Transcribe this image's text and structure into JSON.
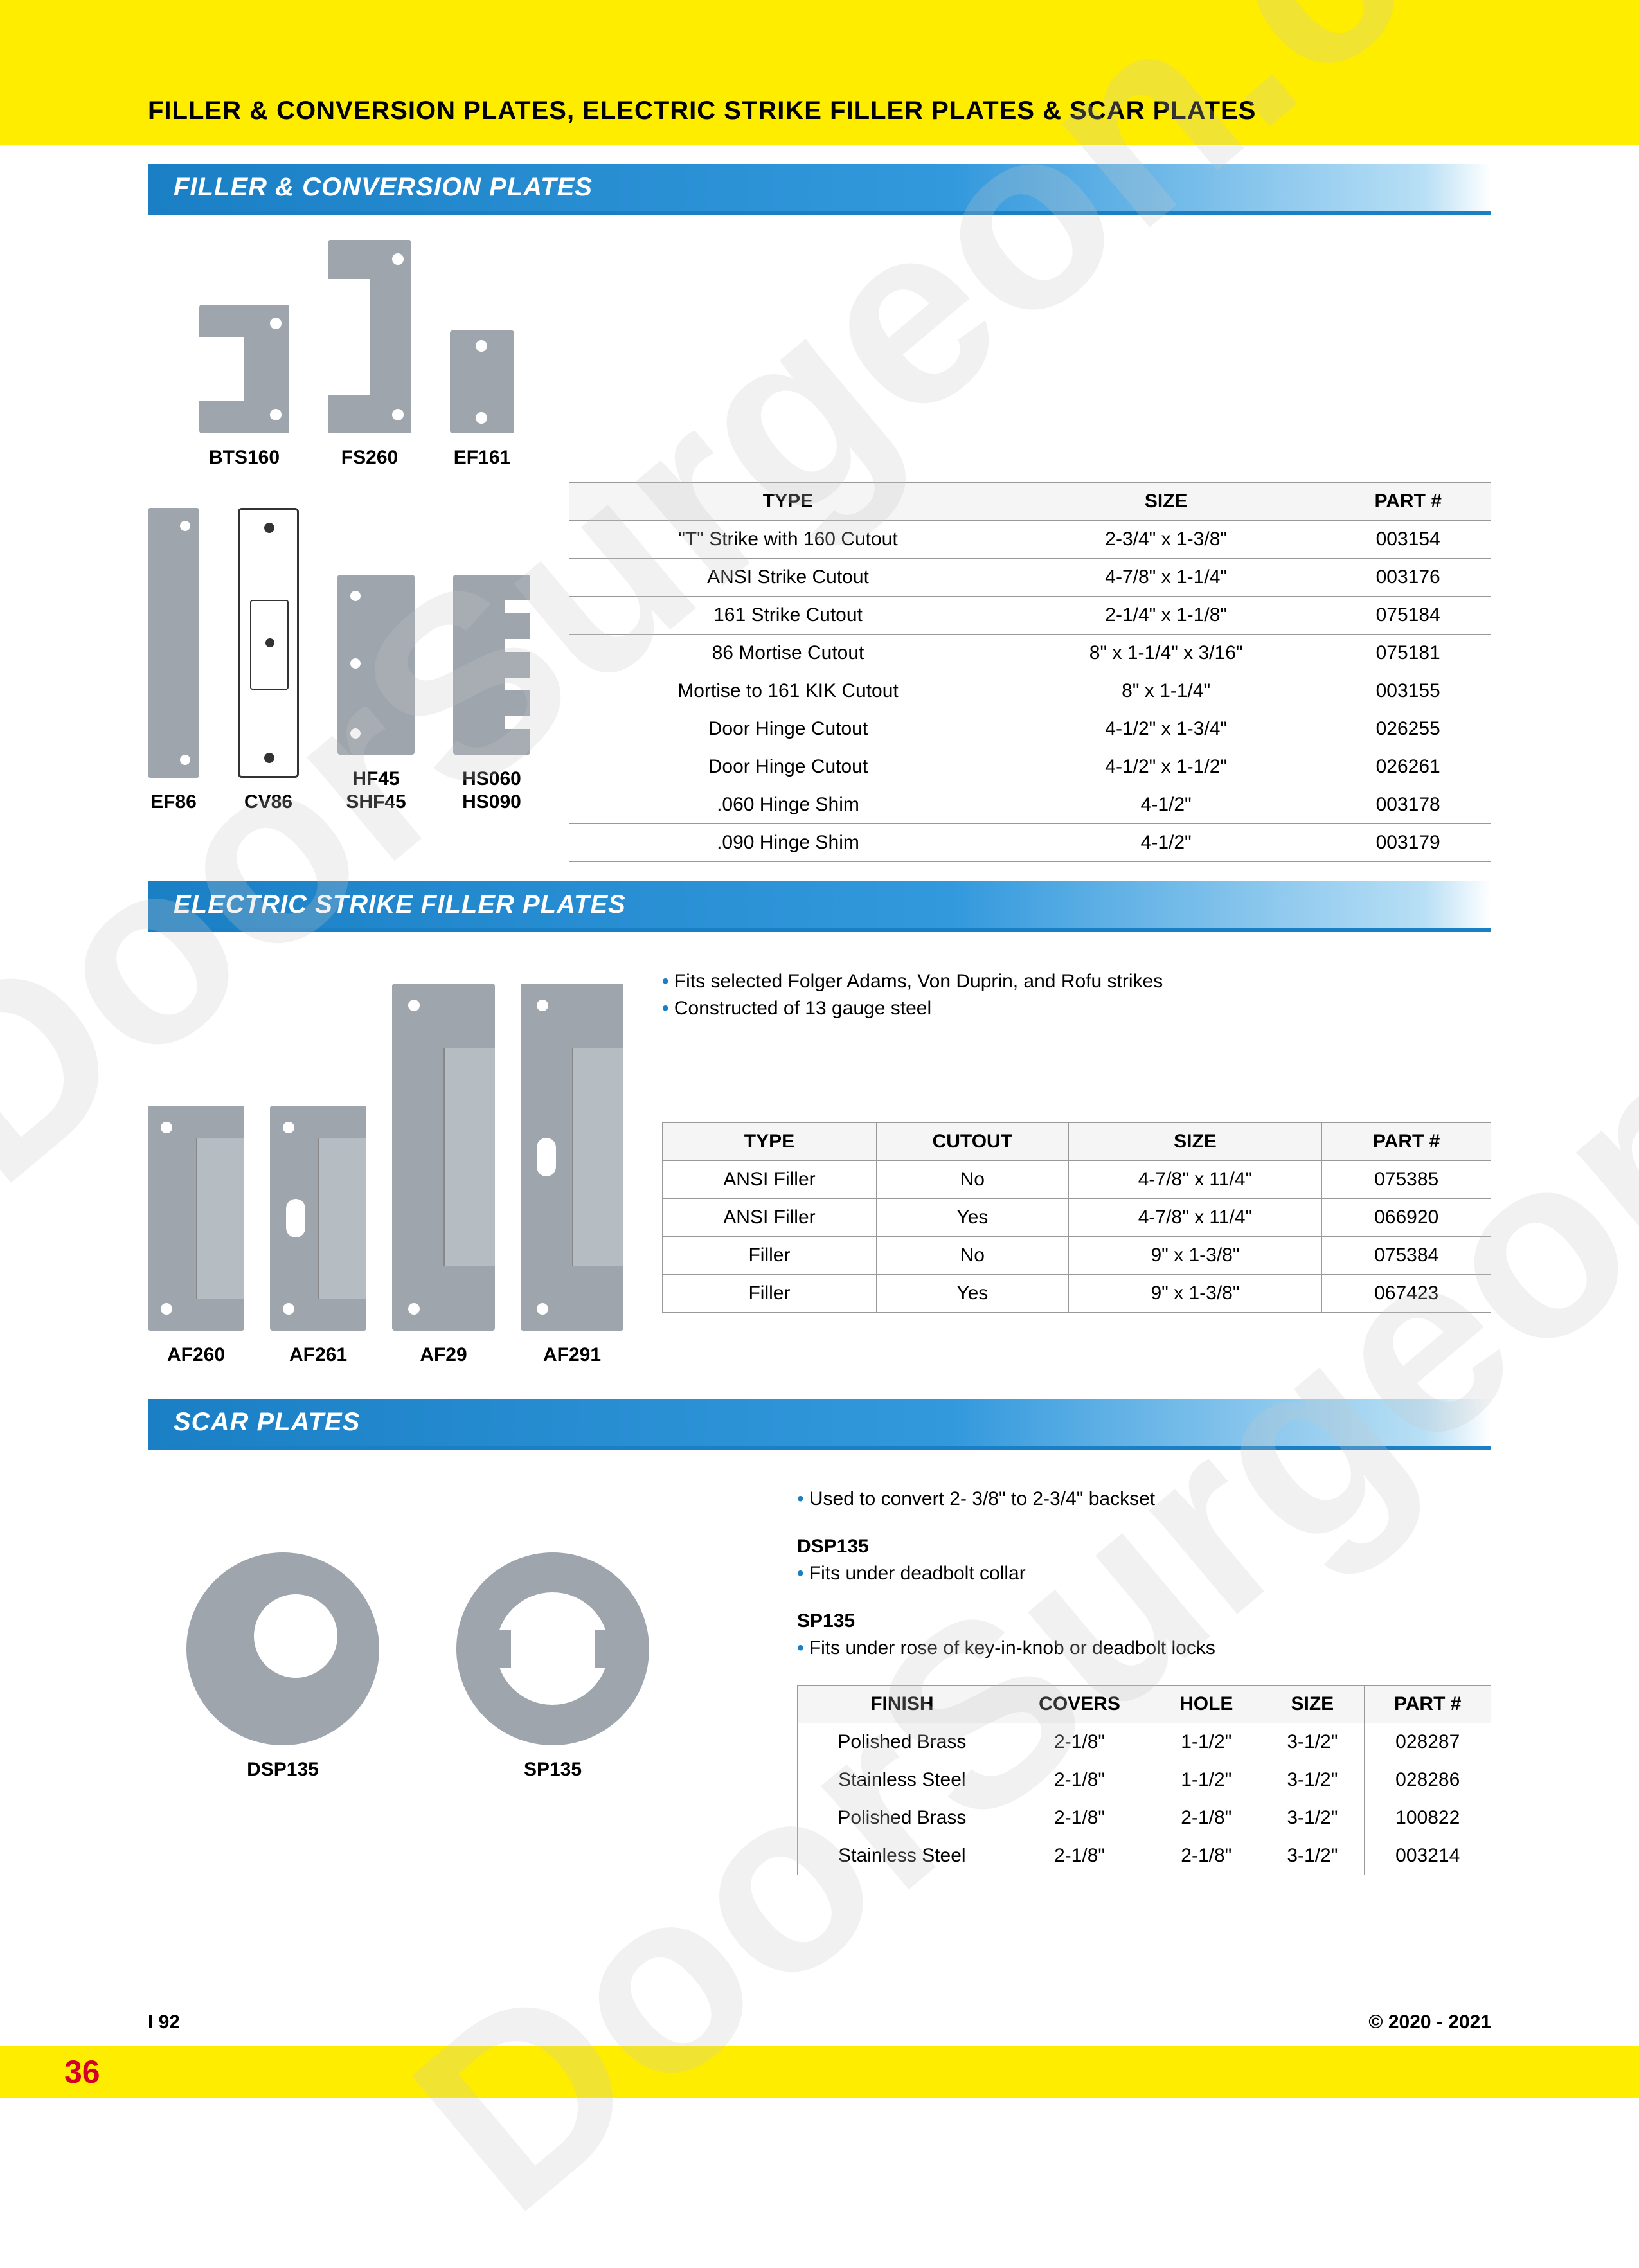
{
  "page_title": "FILLER & CONVERSION PLATES, ELECTRIC STRIKE FILLER PLATES & SCAR PLATES",
  "section1": {
    "header": "FILLER & CONVERSION PLATES",
    "row1_products": [
      "BTS160",
      "FS260",
      "EF161"
    ],
    "row2_products": [
      "EF86",
      "CV86",
      "HF45\nSHF45",
      "HS060\nHS090"
    ],
    "table": {
      "headers": [
        "TYPE",
        "SIZE",
        "PART #"
      ],
      "rows": [
        [
          "\"T\" Strike with 160 Cutout",
          "2-3/4\" x 1-3/8\"",
          "003154"
        ],
        [
          "ANSI Strike Cutout",
          "4-7/8\" x 1-1/4\"",
          "003176"
        ],
        [
          "161 Strike Cutout",
          "2-1/4\" x 1-1/8\"",
          "075184"
        ],
        [
          "86 Mortise Cutout",
          "8\" x 1-1/4\" x 3/16\"",
          "075181"
        ],
        [
          "Mortise to 161 KIK Cutout",
          "8\" x 1-1/4\"",
          "003155"
        ],
        [
          "Door Hinge Cutout",
          "4-1/2\" x 1-3/4\"",
          "026255"
        ],
        [
          "Door Hinge Cutout",
          "4-1/2\" x 1-1/2\"",
          "026261"
        ],
        [
          ".060 Hinge Shim",
          "4-1/2\"",
          "003178"
        ],
        [
          ".090 Hinge Shim",
          "4-1/2\"",
          "003179"
        ]
      ]
    }
  },
  "section2": {
    "header": "ELECTRIC STRIKE FILLER PLATES",
    "products": [
      "AF260",
      "AF261",
      "AF29",
      "AF291"
    ],
    "bullets": [
      "Fits selected Folger Adams, Von Duprin, and Rofu strikes",
      "Constructed of 13 gauge steel"
    ],
    "table": {
      "headers": [
        "TYPE",
        "CUTOUT",
        "SIZE",
        "PART #"
      ],
      "rows": [
        [
          "ANSI Filler",
          "No",
          "4-7/8\" x 11/4\"",
          "075385"
        ],
        [
          "ANSI Filler",
          "Yes",
          "4-7/8\" x 11/4\"",
          "066920"
        ],
        [
          "Filler",
          "No",
          "9\" x 1-3/8\"",
          "075384"
        ],
        [
          "Filler",
          "Yes",
          "9\" x 1-3/8\"",
          "067423"
        ]
      ]
    }
  },
  "section3": {
    "header": "SCAR PLATES",
    "products": [
      "DSP135",
      "SP135"
    ],
    "top_bullet": "Used to convert 2- 3/8\" to 2-3/4\" backset",
    "dsp_label": "DSP135",
    "dsp_bullet": "Fits under deadbolt collar",
    "sp_label": "SP135",
    "sp_bullet": "Fits under rose of key-in-knob or deadbolt locks",
    "table": {
      "headers": [
        "FINISH",
        "COVERS",
        "HOLE",
        "SIZE",
        "PART #"
      ],
      "rows": [
        [
          "Polished Brass",
          "2-1/8\"",
          "1-1/2\"",
          "3-1/2\"",
          "028287"
        ],
        [
          "Stainless Steel",
          "2-1/8\"",
          "1-1/2\"",
          "3-1/2\"",
          "028286"
        ],
        [
          "Polished Brass",
          "2-1/8\"",
          "2-1/8\"",
          "3-1/2\"",
          "100822"
        ],
        [
          "Stainless Steel",
          "2-1/8\"",
          "2-1/8\"",
          "3-1/2\"",
          "003214"
        ]
      ]
    }
  },
  "footer": {
    "left_code": "I 92",
    "copyright": "© 2020 - 2021",
    "page_num": "36"
  },
  "watermark_text": "DoorSurgeon.com",
  "colors": {
    "yellow": "#ffed00",
    "blue": "#1a7fc4",
    "plate": "#9ea5ac",
    "red": "#d4002a"
  }
}
